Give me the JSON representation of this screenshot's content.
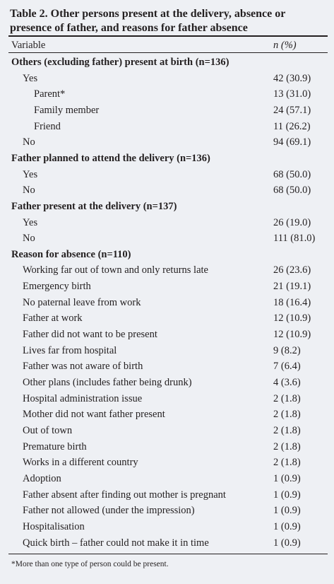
{
  "table": {
    "title": "Table 2. Other persons present at the delivery, absence or presence of father, and reasons for father absence",
    "header": [
      "Variable",
      "n (%)"
    ],
    "sections": [
      {
        "heading": "Others (excluding father) present at birth (n=136)",
        "rows": [
          {
            "label": "Yes",
            "value": "42 (30.9)",
            "children": [
              {
                "label": "Parent*",
                "value": "13 (31.0)"
              },
              {
                "label": "Family member",
                "value": "24 (57.1)"
              },
              {
                "label": "Friend",
                "value": "11 (26.2)"
              }
            ]
          },
          {
            "label": "No",
            "value": "94 (69.1)"
          }
        ]
      },
      {
        "heading": "Father planned to attend the delivery (n=136)",
        "rows": [
          {
            "label": "Yes",
            "value": "68 (50.0)"
          },
          {
            "label": "No",
            "value": "68 (50.0)"
          }
        ]
      },
      {
        "heading": "Father present at the delivery (n=137)",
        "rows": [
          {
            "label": "Yes",
            "value": "26 (19.0)"
          },
          {
            "label": "No",
            "value": "111 (81.0)"
          }
        ]
      },
      {
        "heading": "Reason for absence (n=110)",
        "rows": [
          {
            "label": "Working far out of town and only returns late",
            "value": "26 (23.6)"
          },
          {
            "label": "Emergency birth",
            "value": "21 (19.1)"
          },
          {
            "label": "No paternal leave from work",
            "value": "18 (16.4)"
          },
          {
            "label": "Father at work",
            "value": "12 (10.9)"
          },
          {
            "label": "Father did not want to be present",
            "value": "12 (10.9)"
          },
          {
            "label": "Lives far from hospital",
            "value": "9 (8.2)"
          },
          {
            "label": "Father was not aware of birth",
            "value": "7 (6.4)"
          },
          {
            "label": "Other plans (includes father being drunk)",
            "value": "4 (3.6)"
          },
          {
            "label": "Hospital administration issue",
            "value": "2 (1.8)"
          },
          {
            "label": "Mother did not want father present",
            "value": "2 (1.8)"
          },
          {
            "label": "Out of town",
            "value": "2 (1.8)"
          },
          {
            "label": "Premature birth",
            "value": "2 (1.8)"
          },
          {
            "label": "Works in a different country",
            "value": "2 (1.8)"
          },
          {
            "label": "Adoption",
            "value": "1 (0.9)"
          },
          {
            "label": "Father absent after finding out mother is pregnant",
            "value": "1 (0.9)"
          },
          {
            "label": "Father not allowed (under the impression)",
            "value": "1 (0.9)"
          },
          {
            "label": "Hospitalisation",
            "value": "1 (0.9)"
          },
          {
            "label": "Quick birth – father could not make it in time",
            "value": "1 (0.9)"
          }
        ]
      }
    ],
    "footnote": "*More than one type of person could be present."
  }
}
